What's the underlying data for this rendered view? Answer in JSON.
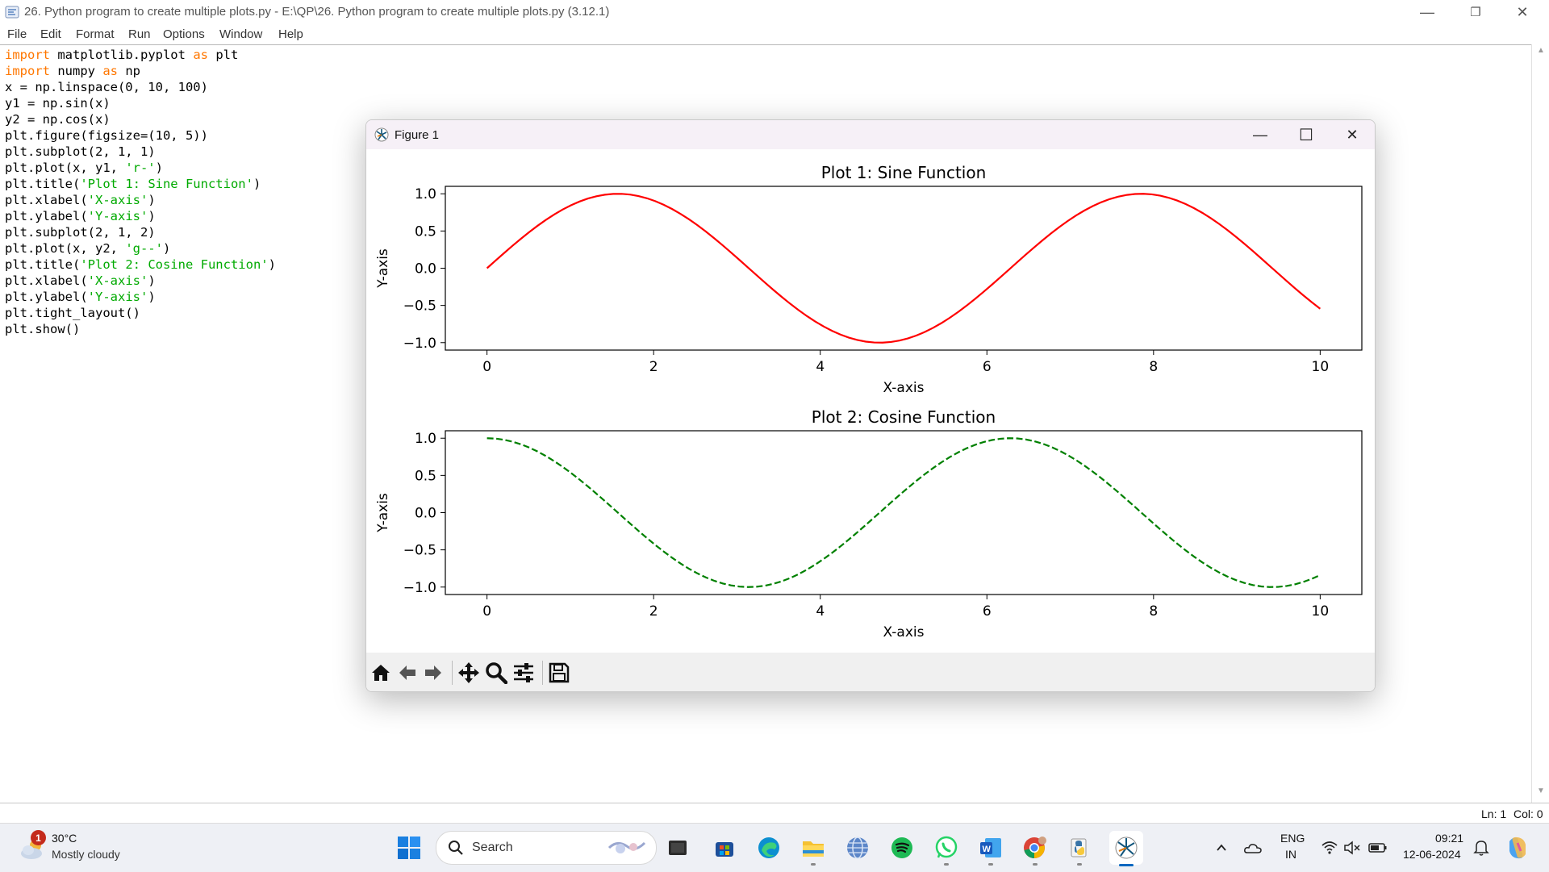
{
  "window": {
    "title": "26. Python program to create multiple plots.py - E:\\QP\\26. Python program to create multiple plots.py (3.12.1)",
    "minimize": "—",
    "maximize": "❐",
    "close": "✕"
  },
  "menu": [
    "File",
    "Edit",
    "Format",
    "Run",
    "Options",
    "Window",
    "Help"
  ],
  "code": [
    [
      {
        "t": "import",
        "c": "kw"
      },
      {
        "t": " matplotlib.pyplot "
      },
      {
        "t": "as",
        "c": "kw"
      },
      {
        "t": " plt"
      }
    ],
    [
      {
        "t": "import",
        "c": "kw"
      },
      {
        "t": " numpy "
      },
      {
        "t": "as",
        "c": "kw"
      },
      {
        "t": " np"
      }
    ],
    [
      {
        "t": "x = np.linspace(0, 10, 100)"
      }
    ],
    [
      {
        "t": "y1 = np.sin(x)"
      }
    ],
    [
      {
        "t": "y2 = np.cos(x)"
      }
    ],
    [
      {
        "t": "plt.figure(figsize=(10, 5))"
      }
    ],
    [
      {
        "t": "plt.subplot(2, 1, 1)"
      }
    ],
    [
      {
        "t": "plt.plot(x, y1, "
      },
      {
        "t": "'r-'",
        "c": "str"
      },
      {
        "t": ")"
      }
    ],
    [
      {
        "t": "plt.title("
      },
      {
        "t": "'Plot 1: Sine Function'",
        "c": "str"
      },
      {
        "t": ")"
      }
    ],
    [
      {
        "t": "plt.xlabel("
      },
      {
        "t": "'X-axis'",
        "c": "str"
      },
      {
        "t": ")"
      }
    ],
    [
      {
        "t": "plt.ylabel("
      },
      {
        "t": "'Y-axis'",
        "c": "str"
      },
      {
        "t": ")"
      }
    ],
    [
      {
        "t": "plt.subplot(2, 1, 2)"
      }
    ],
    [
      {
        "t": "plt.plot(x, y2, "
      },
      {
        "t": "'g--'",
        "c": "str"
      },
      {
        "t": ")"
      }
    ],
    [
      {
        "t": "plt.title("
      },
      {
        "t": "'Plot 2: Cosine Function'",
        "c": "str"
      },
      {
        "t": ")"
      }
    ],
    [
      {
        "t": "plt.xlabel("
      },
      {
        "t": "'X-axis'",
        "c": "str"
      },
      {
        "t": ")"
      }
    ],
    [
      {
        "t": "plt.ylabel("
      },
      {
        "t": "'Y-axis'",
        "c": "str"
      },
      {
        "t": ")"
      }
    ],
    [
      {
        "t": "plt.tight_layout()"
      }
    ],
    [
      {
        "t": "plt.show()"
      }
    ]
  ],
  "status": {
    "line": "Ln: 1",
    "col": "Col: 0"
  },
  "figure": {
    "title": "Figure 1",
    "minimize": "—",
    "maximize": "☐",
    "close": "✕",
    "toolbar": [
      "home-icon",
      "back-icon",
      "forward-icon",
      "pan-icon",
      "zoom-icon",
      "configure-icon",
      "save-icon"
    ]
  },
  "chart_data": [
    {
      "type": "line",
      "title": "Plot 1: Sine Function",
      "xlabel": "X-axis",
      "ylabel": "Y-axis",
      "function": "sin",
      "x_range": [
        0,
        10
      ],
      "num_points": 100,
      "xlim": [
        -0.5,
        10.5
      ],
      "ylim": [
        -1.1,
        1.1
      ],
      "xticks": [
        0,
        2,
        4,
        6,
        8,
        10
      ],
      "yticks": [
        1.0,
        0.5,
        0.0,
        -0.5,
        -1.0
      ],
      "ytick_labels": [
        "1.0",
        "0.5",
        "0.0",
        "−0.5",
        "−1.0"
      ],
      "color": "#ff0000",
      "linestyle": "solid",
      "grid": false
    },
    {
      "type": "line",
      "title": "Plot 2: Cosine Function",
      "xlabel": "X-axis",
      "ylabel": "Y-axis",
      "function": "cos",
      "x_range": [
        0,
        10
      ],
      "num_points": 100,
      "xlim": [
        -0.5,
        10.5
      ],
      "ylim": [
        -1.1,
        1.1
      ],
      "xticks": [
        0,
        2,
        4,
        6,
        8,
        10
      ],
      "yticks": [
        1.0,
        0.5,
        0.0,
        -0.5,
        -1.0
      ],
      "ytick_labels": [
        "1.0",
        "0.5",
        "0.0",
        "−0.5",
        "−1.0"
      ],
      "color": "#008000",
      "linestyle": "dashed",
      "grid": false
    }
  ],
  "taskbar": {
    "weather": {
      "badge": "1",
      "temp": "30°C",
      "desc": "Mostly cloudy"
    },
    "search_placeholder": "Search",
    "apps": [
      "windows-start",
      "search",
      "task-view",
      "microsoft-store",
      "edge",
      "file-explorer",
      "globe-app",
      "spotify",
      "whatsapp",
      "word",
      "chrome",
      "python-idle",
      "matplotlib-figure"
    ],
    "lang1": "ENG",
    "lang2": "IN",
    "time": "09:21",
    "date": "12-06-2024"
  }
}
